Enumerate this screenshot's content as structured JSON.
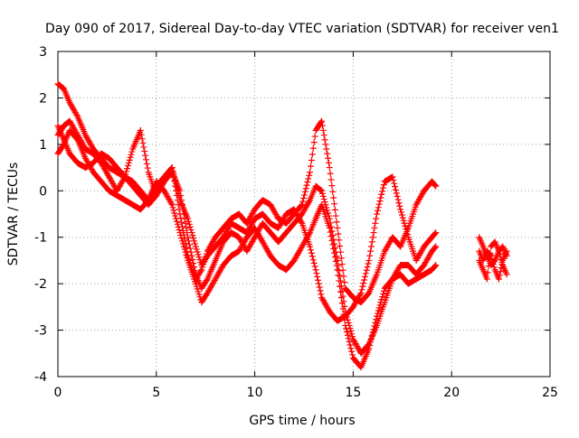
{
  "chart_data": {
    "type": "scatter",
    "title": "Day 090 of 2017, Sidereal Day-to-day VTEC variation (SDTVAR) for receiver ven1",
    "xlabel": "GPS time / hours",
    "ylabel": "SDTVAR / TECUs",
    "xlim": [
      0,
      25
    ],
    "ylim": [
      -4,
      3
    ],
    "x_ticks": [
      0,
      5,
      10,
      15,
      20,
      25
    ],
    "y_ticks": [
      -4,
      -3,
      -2,
      -1,
      0,
      1,
      2,
      3
    ],
    "grid": true,
    "marker": "+",
    "series_color": "#ff0000",
    "series": [
      {
        "x": [
          0.0,
          0.3,
          0.6,
          1.0,
          1.4,
          1.8,
          2.2,
          2.6,
          3.0,
          3.4,
          3.8,
          4.2,
          4.6,
          5.0,
          5.4,
          5.8,
          6.2,
          6.6,
          7.0,
          7.3,
          7.6,
          8.0,
          8.4,
          8.8,
          9.2,
          9.6,
          10.0,
          10.4,
          10.8,
          11.2,
          11.6,
          12.0,
          12.4,
          12.8,
          13.1,
          13.4,
          13.8,
          14.2,
          14.6,
          15.0,
          15.4,
          15.8,
          16.2,
          16.6,
          17.0,
          17.4,
          17.8,
          18.2,
          18.6,
          19.0,
          19.2
        ],
        "y": [
          2.3,
          2.2,
          1.9,
          1.6,
          1.2,
          0.9,
          0.7,
          0.5,
          0.4,
          0.3,
          0.2,
          0.0,
          -0.2,
          0.1,
          0.3,
          0.5,
          -0.5,
          -1.4,
          -1.9,
          -1.7,
          -1.3,
          -1.0,
          -0.8,
          -0.6,
          -0.5,
          -0.7,
          -0.4,
          -0.2,
          -0.3,
          -0.6,
          -0.7,
          -0.5,
          -0.3,
          0.4,
          1.3,
          1.5,
          0.5,
          -0.8,
          -2.1,
          -2.3,
          -2.4,
          -2.2,
          -1.8,
          -1.3,
          -1.0,
          -1.2,
          -0.8,
          -0.3,
          0.0,
          0.2,
          0.1
        ]
      },
      {
        "x": [
          0.0,
          0.3,
          0.6,
          1.0,
          1.4,
          1.8,
          2.2,
          2.6,
          3.0,
          3.4,
          3.8,
          4.2,
          4.6,
          5.0,
          5.4,
          5.8,
          6.2,
          6.6,
          7.0,
          7.3,
          7.6,
          8.0,
          8.4,
          8.8,
          9.2,
          9.6,
          10.0,
          10.4,
          10.8,
          11.2,
          11.6,
          12.0,
          12.4,
          12.8,
          13.1,
          13.4,
          13.8,
          14.2,
          14.6,
          15.0,
          15.4,
          15.8,
          16.2,
          16.6,
          17.0,
          17.4,
          17.8,
          18.2,
          18.6,
          19.0,
          19.2
        ],
        "y": [
          1.2,
          1.4,
          1.5,
          1.2,
          0.9,
          0.8,
          0.6,
          0.3,
          0.0,
          0.3,
          0.9,
          1.3,
          0.4,
          -0.1,
          0.2,
          0.4,
          0.0,
          -1.0,
          -1.8,
          -2.1,
          -1.9,
          -1.5,
          -1.1,
          -0.9,
          -1.0,
          -1.3,
          -1.0,
          -0.7,
          -0.9,
          -1.1,
          -0.9,
          -0.7,
          -0.5,
          -0.2,
          0.1,
          0.0,
          -0.6,
          -1.5,
          -2.6,
          -3.2,
          -3.5,
          -3.3,
          -2.9,
          -2.4,
          -1.9,
          -1.6,
          -1.6,
          -1.8,
          -1.6,
          -1.3,
          -1.2
        ]
      },
      {
        "x": [
          0.0,
          0.3,
          0.6,
          1.0,
          1.4,
          1.8,
          2.2,
          2.6,
          3.0,
          3.4,
          3.8,
          4.2,
          4.6,
          5.0,
          5.4,
          5.8,
          6.2,
          6.6,
          7.0,
          7.3,
          7.6,
          8.0,
          8.4,
          8.8,
          9.2,
          9.6,
          10.0,
          10.4,
          10.8,
          11.2,
          11.6,
          12.0,
          12.4,
          12.8,
          13.1,
          13.4,
          13.8,
          14.2,
          14.6,
          15.0,
          15.4,
          15.8,
          16.2,
          16.6,
          17.0,
          17.4,
          17.8,
          18.2,
          18.6,
          19.0,
          19.2
        ],
        "y": [
          0.8,
          1.0,
          1.3,
          1.1,
          0.7,
          0.4,
          0.2,
          0.0,
          -0.1,
          -0.2,
          -0.3,
          -0.4,
          -0.2,
          0.2,
          0.0,
          -0.3,
          -0.9,
          -1.5,
          -2.0,
          -2.4,
          -2.2,
          -1.9,
          -1.6,
          -1.4,
          -1.3,
          -1.0,
          -0.8,
          -1.1,
          -1.4,
          -1.6,
          -1.7,
          -1.5,
          -1.2,
          -0.9,
          -0.6,
          -0.3,
          -0.8,
          -1.7,
          -2.9,
          -3.6,
          -3.8,
          -3.4,
          -2.7,
          -2.1,
          -1.9,
          -1.8,
          -2.0,
          -1.9,
          -1.8,
          -1.7,
          -1.6
        ]
      },
      {
        "x": [
          0.0,
          0.3,
          0.6,
          1.0,
          1.4,
          1.8,
          2.2,
          2.6,
          3.0,
          3.4,
          3.8,
          4.2,
          4.6,
          5.0,
          5.4,
          5.8,
          6.2,
          6.6,
          7.0,
          7.3,
          7.6,
          8.0,
          8.4,
          8.8,
          9.2,
          9.6,
          10.0,
          10.4,
          10.8,
          11.2,
          11.6,
          12.0,
          12.4,
          12.8,
          13.1,
          13.4,
          13.8,
          14.2,
          14.6,
          15.0,
          15.4,
          15.8,
          16.2,
          16.6,
          17.0,
          17.4,
          17.8,
          18.2,
          18.6,
          19.0,
          19.2
        ],
        "y": [
          1.4,
          1.1,
          0.8,
          0.6,
          0.5,
          0.6,
          0.8,
          0.7,
          0.5,
          0.3,
          0.1,
          -0.1,
          -0.3,
          -0.1,
          0.2,
          0.5,
          -0.2,
          -0.6,
          -1.2,
          -1.6,
          -1.4,
          -1.2,
          -1.0,
          -0.7,
          -0.8,
          -0.9,
          -0.6,
          -0.5,
          -0.7,
          -0.8,
          -0.5,
          -0.4,
          -0.7,
          -1.2,
          -1.7,
          -2.3,
          -2.6,
          -2.8,
          -2.7,
          -2.5,
          -2.2,
          -1.5,
          -0.5,
          0.2,
          0.3,
          -0.4,
          -1.0,
          -1.5,
          -1.2,
          -1.0,
          -0.9
        ]
      },
      {
        "x": [
          21.4,
          21.6,
          21.8,
          22.0,
          22.2,
          22.4,
          22.6,
          22.8
        ],
        "y": [
          -1.0,
          -1.2,
          -1.4,
          -1.6,
          -1.5,
          -1.3,
          -1.2,
          -1.4
        ]
      },
      {
        "x": [
          21.4,
          21.6,
          21.8,
          22.0,
          22.2,
          22.4,
          22.6,
          22.8
        ],
        "y": [
          -1.5,
          -1.7,
          -1.9,
          -1.2,
          -1.1,
          -1.3,
          -1.6,
          -1.8
        ]
      },
      {
        "x": [
          21.4,
          21.6,
          21.8,
          22.0,
          22.2,
          22.4,
          22.6,
          22.8
        ],
        "y": [
          -1.3,
          -1.5,
          -1.3,
          -1.4,
          -1.7,
          -1.9,
          -1.5,
          -1.3
        ]
      }
    ]
  }
}
